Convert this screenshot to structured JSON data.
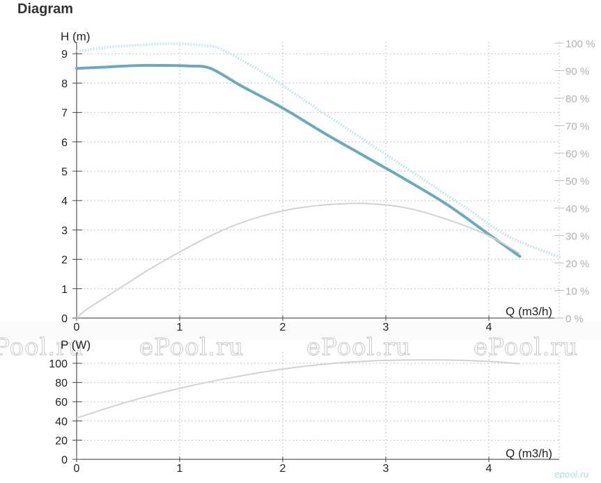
{
  "title": "Diagram",
  "watermark": "ePool.ru",
  "brand_mark": "epool.ru",
  "colors": {
    "head_curve": "#6aaabc",
    "efficiency_curve": "#c7e7ee",
    "npsh_curve": "#d2d2d2",
    "power_curve": "#d2d2d2",
    "grid": "#c4c4c4",
    "right_axis_text": "#b0b0b0"
  },
  "chart_data": [
    {
      "type": "line",
      "xlabel": "Q (m3/h)",
      "ylabel": "H (m)",
      "y2label_unit": "%",
      "xlim": [
        0,
        4.7
      ],
      "ylim": [
        0,
        9.2
      ],
      "y2lim": [
        0,
        100
      ],
      "x_ticks": [
        "0",
        "1",
        "2",
        "3",
        "4"
      ],
      "y_ticks": [
        "0",
        "1",
        "2",
        "3",
        "4",
        "5",
        "6",
        "7",
        "8",
        "9"
      ],
      "y2_ticks": [
        "0 %",
        "10 %",
        "20 %",
        "30 %",
        "40 %",
        "50 %",
        "60 %",
        "70 %",
        "80 %",
        "90 %",
        "100 %"
      ],
      "grid": true,
      "series": [
        {
          "role": "head",
          "axis": "left",
          "x": [
            0,
            0.3,
            0.6,
            0.9,
            1.1,
            1.3,
            1.6,
            2.0,
            2.4,
            2.8,
            3.2,
            3.6,
            4.0,
            4.3
          ],
          "y": [
            8.5,
            8.55,
            8.6,
            8.6,
            8.58,
            8.5,
            7.9,
            7.15,
            6.3,
            5.5,
            4.7,
            3.85,
            2.85,
            2.1
          ]
        },
        {
          "role": "efficiency",
          "axis": "right",
          "x": [
            0,
            0.3,
            0.6,
            0.9,
            1.2,
            1.4,
            1.8,
            2.2,
            2.6,
            3.0,
            3.4,
            3.8,
            4.2,
            4.7
          ],
          "y": [
            97,
            98.5,
            99.3,
            99.8,
            99.3,
            97.8,
            89.5,
            79.5,
            69.5,
            59.5,
            49.5,
            39.5,
            29.5,
            22
          ]
        },
        {
          "role": "npsh",
          "axis": "left",
          "x": [
            0,
            0.1,
            0.3,
            0.5,
            0.7,
            1.0,
            1.3,
            1.6,
            2.0,
            2.4,
            2.8,
            3.2,
            3.6,
            4.0,
            4.3
          ],
          "y": [
            0,
            0.3,
            0.75,
            1.2,
            1.65,
            2.25,
            2.8,
            3.25,
            3.65,
            3.85,
            3.9,
            3.75,
            3.35,
            2.8,
            2.2
          ]
        }
      ]
    },
    {
      "type": "line",
      "xlabel": "Q (m3/h)",
      "ylabel": "P (W)",
      "xlim": [
        0,
        4.7
      ],
      "ylim": [
        0,
        105
      ],
      "x_ticks": [
        "0",
        "1",
        "2",
        "3",
        "4"
      ],
      "y_ticks": [
        "0",
        "20",
        "40",
        "60",
        "80",
        "100"
      ],
      "grid": true,
      "series": [
        {
          "role": "power",
          "x": [
            0,
            0.5,
            1.0,
            1.5,
            2.0,
            2.5,
            3.0,
            3.5,
            4.0,
            4.3
          ],
          "y": [
            43,
            60,
            74,
            85,
            94,
            100,
            103,
            103.5,
            102,
            99.5
          ]
        }
      ]
    }
  ]
}
